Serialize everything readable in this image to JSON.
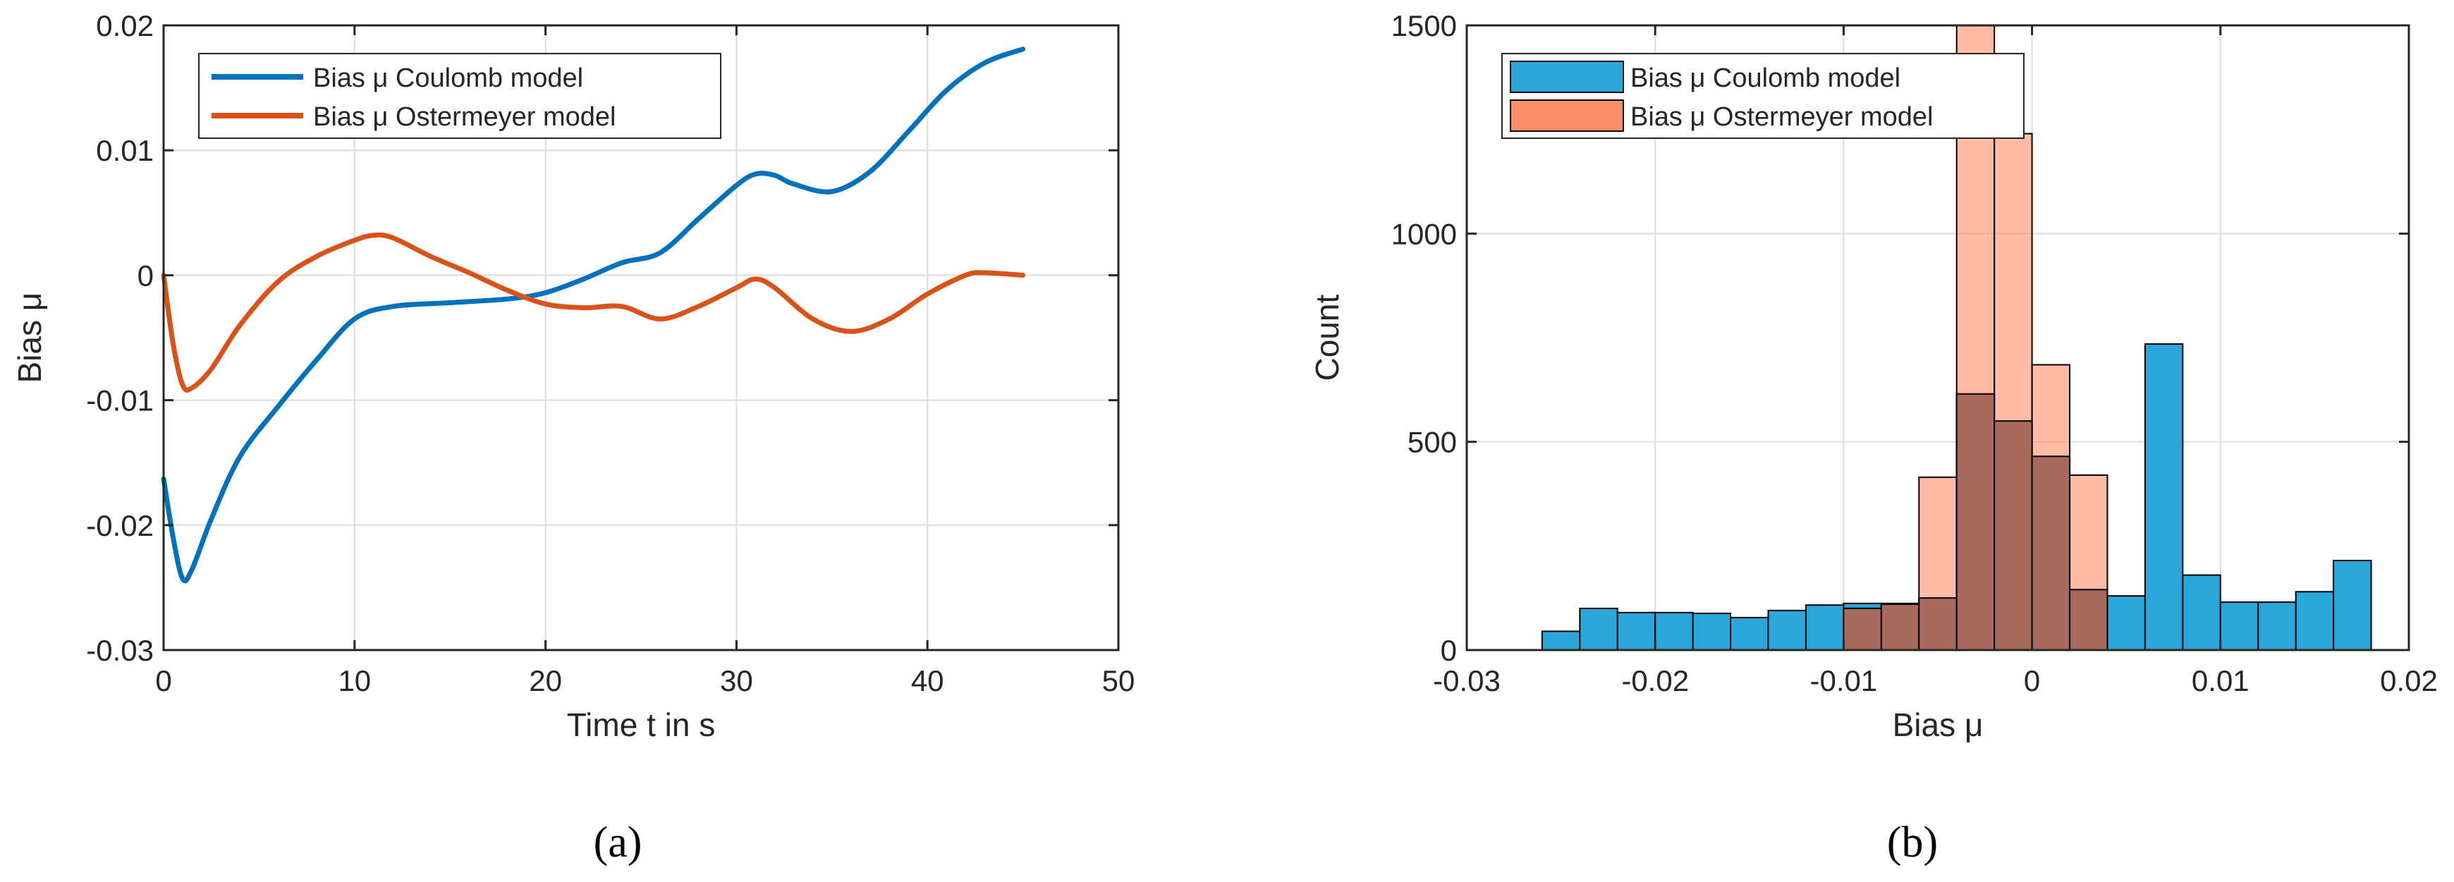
{
  "captions": {
    "a": "(a)",
    "b": "(b)"
  },
  "colors": {
    "coulomb": "#0072BD",
    "ostermeyer": "#D95319",
    "hist_coulomb": "#2AA6D8",
    "hist_ostermeyer": "#FD8E6B",
    "hist_overlap": "#A76A5C",
    "grid": "#DCDCDC",
    "axis": "#262626"
  },
  "chart_data": [
    {
      "type": "line",
      "xlabel": "Time t in s",
      "ylabel": "Bias μ",
      "xlim": [
        0,
        50
      ],
      "ylim": [
        -0.03,
        0.02
      ],
      "xticks": [
        0,
        10,
        20,
        30,
        40,
        50
      ],
      "xtick_labels": [
        "0",
        "10",
        "20",
        "30",
        "40",
        "50"
      ],
      "yticks": [
        -0.03,
        -0.02,
        -0.01,
        0,
        0.01,
        0.02
      ],
      "ytick_labels": [
        "-0.03",
        "-0.02",
        "-0.01",
        "0",
        "0.01",
        "0.02"
      ],
      "grid": true,
      "legend_position": "top-left",
      "series": [
        {
          "name": "Bias μ Coulomb model",
          "color_key": "coulomb",
          "x": [
            0,
            0.5,
            1.0,
            1.5,
            2.5,
            4,
            6,
            8,
            10,
            12,
            15,
            18,
            20,
            22,
            24,
            26,
            28,
            30,
            31,
            32,
            33,
            35,
            37,
            39,
            41,
            43,
            45
          ],
          "y": [
            -0.0163,
            -0.021,
            -0.0243,
            -0.0235,
            -0.0195,
            -0.0145,
            -0.0105,
            -0.0068,
            -0.0035,
            -0.0025,
            -0.0022,
            -0.0019,
            -0.0014,
            -0.0003,
            0.001,
            0.0018,
            0.0045,
            0.0072,
            0.0081,
            0.008,
            0.0073,
            0.0067,
            0.0083,
            0.0115,
            0.0148,
            0.017,
            0.0181
          ]
        },
        {
          "name": "Bias μ Ostermeyer model",
          "color_key": "ostermeyer",
          "x": [
            0,
            0.5,
            1.0,
            1.5,
            2.5,
            4,
            6,
            8,
            10,
            11,
            12,
            14,
            16,
            18,
            20,
            22,
            24,
            26,
            28,
            30,
            31,
            32,
            34,
            36,
            38,
            40,
            42,
            43,
            45
          ],
          "y": [
            0,
            -0.0055,
            -0.0088,
            -0.009,
            -0.0075,
            -0.004,
            -0.0005,
            0.0015,
            0.0028,
            0.0032,
            0.003,
            0.0015,
            0.0002,
            -0.0012,
            -0.0023,
            -0.0026,
            -0.0025,
            -0.0035,
            -0.0025,
            -0.001,
            -0.0003,
            -0.001,
            -0.0035,
            -0.0045,
            -0.0035,
            -0.0015,
            0.0,
            0.0002,
            0.0
          ]
        }
      ]
    },
    {
      "type": "bar",
      "subtype": "histogram",
      "xlabel": "Bias μ",
      "ylabel": "Count",
      "xlim": [
        -0.03,
        0.02
      ],
      "ylim": [
        0,
        1500
      ],
      "xticks": [
        -0.03,
        -0.02,
        -0.01,
        0,
        0.01,
        0.02
      ],
      "xtick_labels": [
        "-0.03",
        "-0.02",
        "-0.01",
        "0",
        "0.01",
        "0.02"
      ],
      "yticks": [
        0,
        500,
        1000,
        1500
      ],
      "ytick_labels": [
        "0",
        "500",
        "1000",
        "1500"
      ],
      "grid": true,
      "legend_position": "top-left",
      "series": [
        {
          "name": "Bias μ Coulomb model",
          "color_key": "hist_coulomb",
          "bin_edges": [
            -0.026,
            -0.024,
            -0.022,
            -0.02,
            -0.018,
            -0.016,
            -0.014,
            -0.012,
            -0.01,
            -0.008,
            -0.006,
            -0.004,
            -0.002,
            0.0,
            0.002,
            0.004,
            0.006,
            0.008,
            0.01,
            0.012,
            0.014,
            0.016,
            0.018
          ],
          "counts": [
            45,
            100,
            90,
            90,
            88,
            78,
            95,
            108,
            112,
            112,
            125,
            615,
            550,
            465,
            145,
            130,
            735,
            180,
            115,
            115,
            140,
            215
          ]
        },
        {
          "name": "Bias μ Ostermeyer model",
          "color_key": "hist_ostermeyer",
          "bin_edges": [
            -0.01,
            -0.008,
            -0.006,
            -0.004,
            -0.002,
            0.0,
            0.002,
            0.004
          ],
          "counts": [
            100,
            110,
            415,
            1500,
            1240,
            685,
            420
          ]
        }
      ]
    }
  ]
}
